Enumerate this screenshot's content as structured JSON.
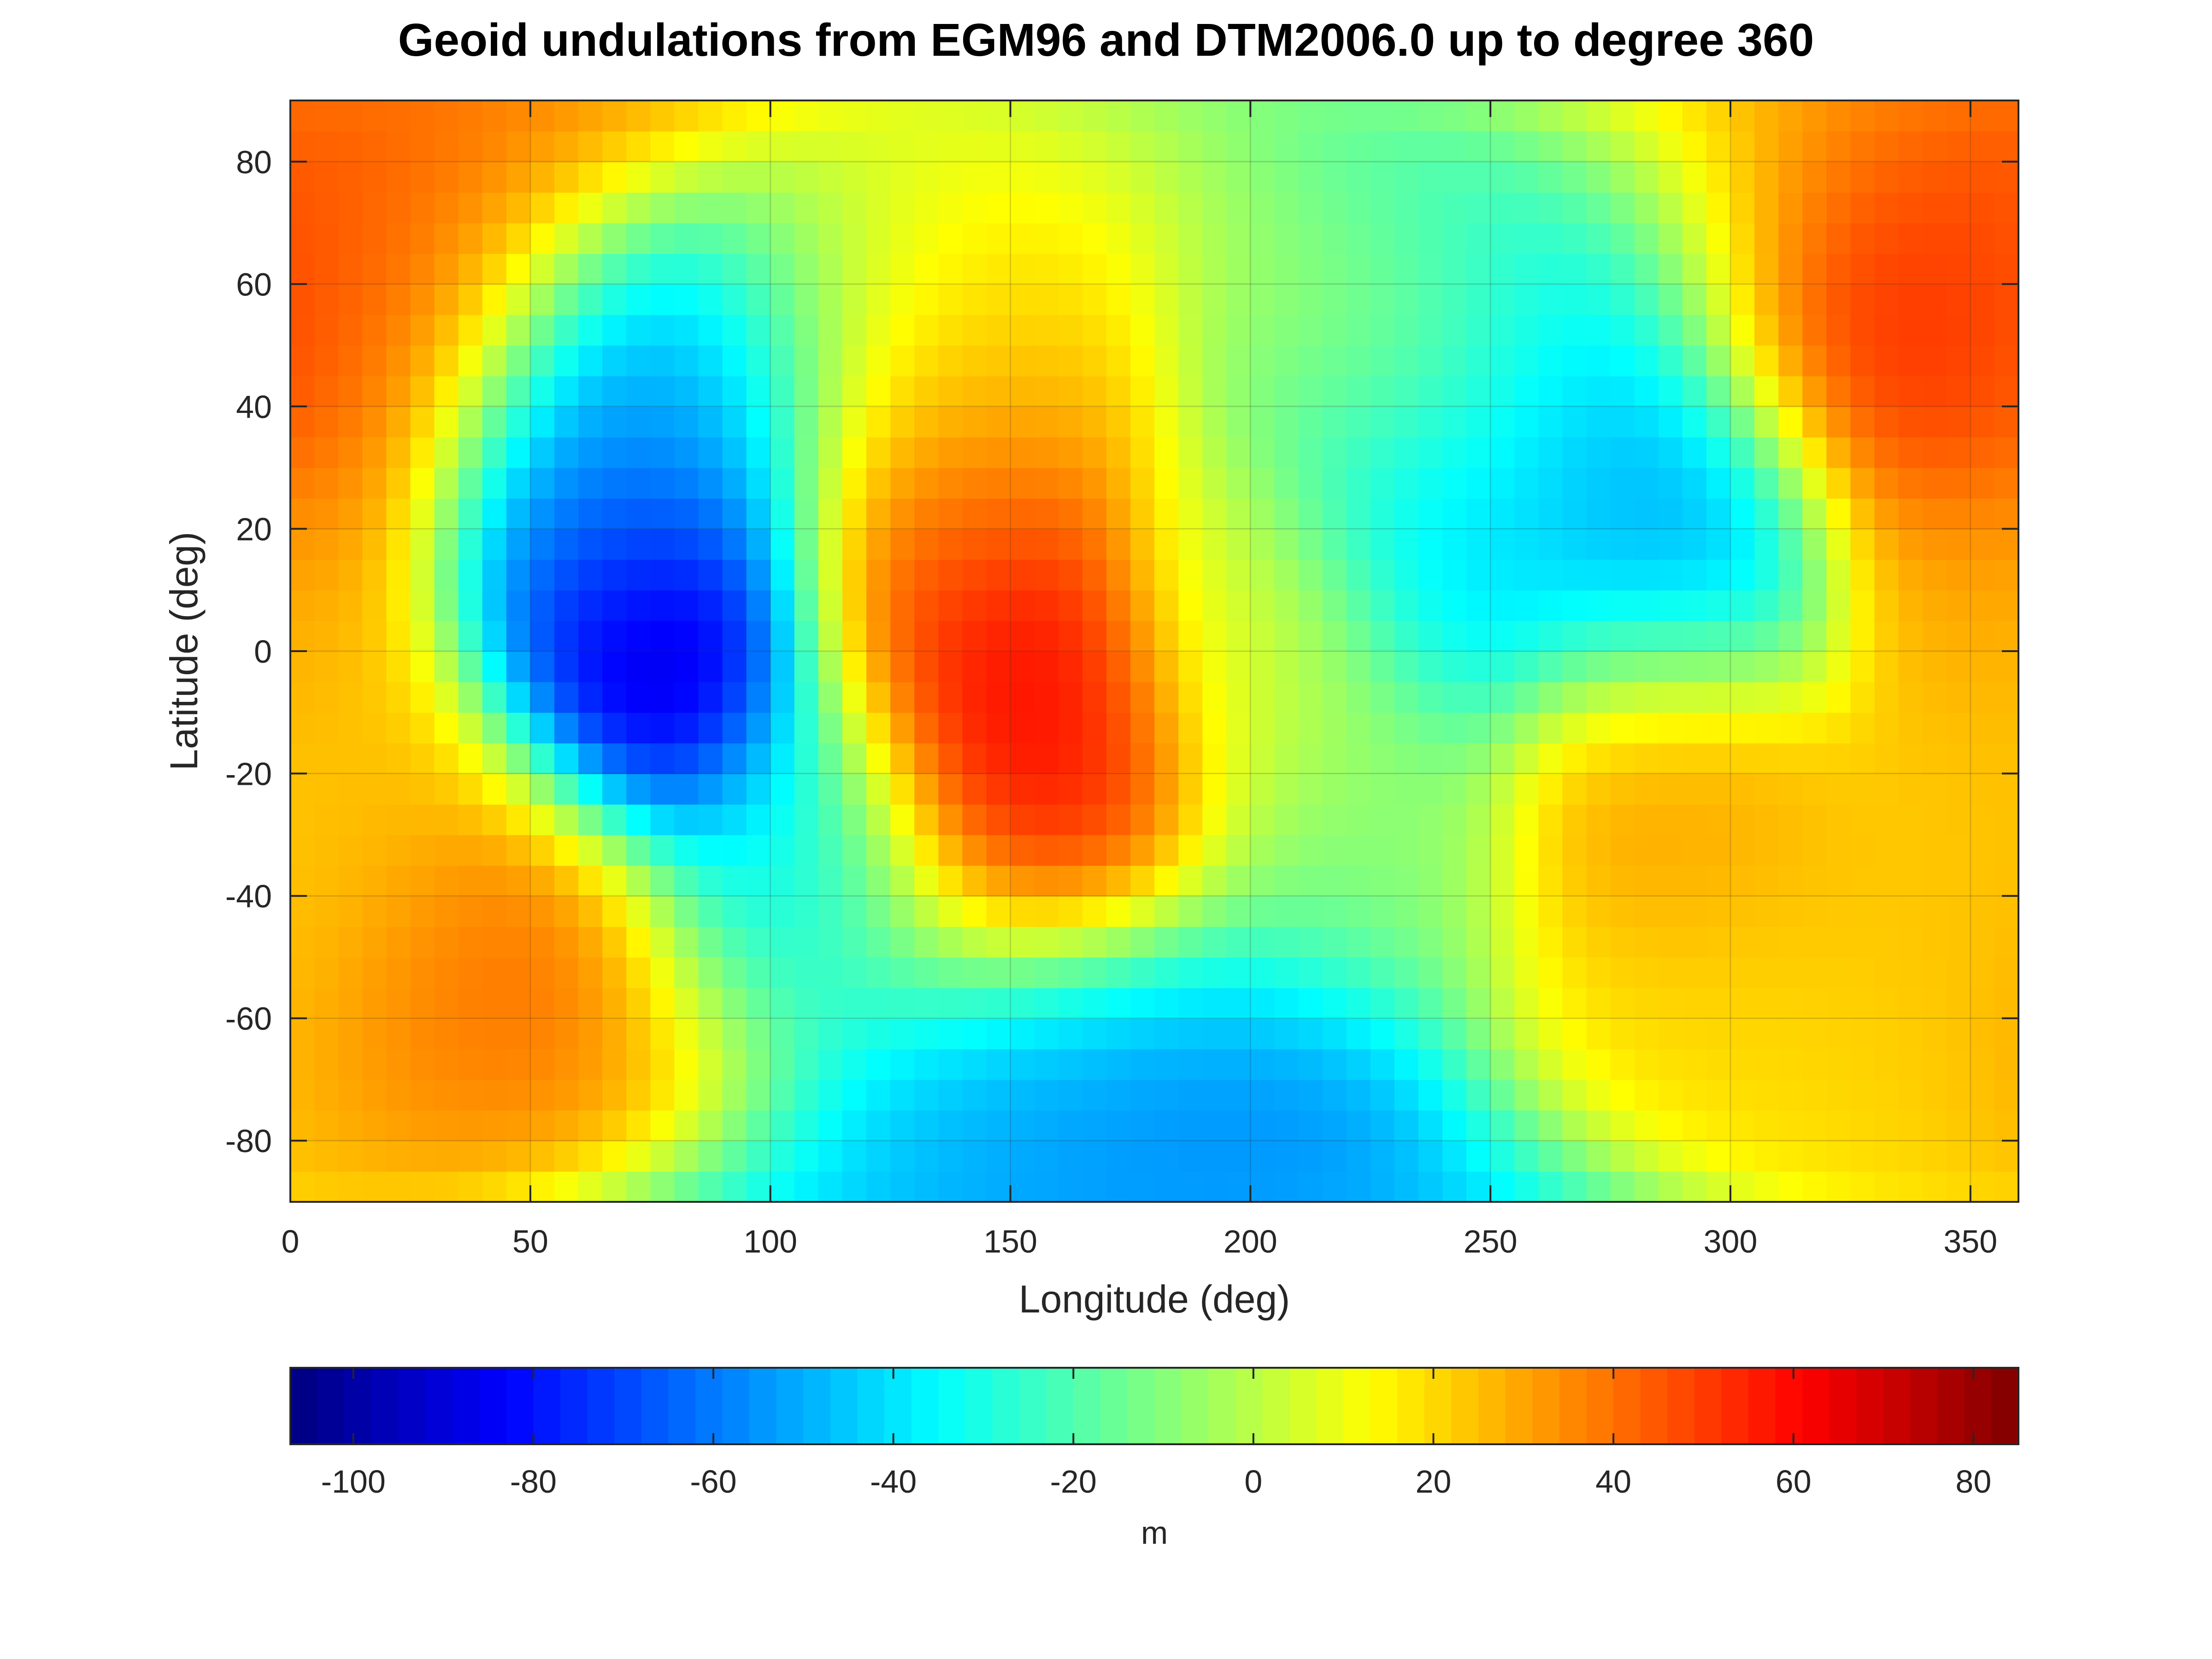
{
  "chart_data": {
    "type": "heatmap",
    "title": "Geoid undulations from EGM96 and DTM2006.0 up to degree 360",
    "xlabel": "Longitude (deg)",
    "ylabel": "Latitude (deg)",
    "xlim": [
      0,
      360
    ],
    "ylim": [
      -90,
      90
    ],
    "xticks": [
      0,
      50,
      100,
      150,
      200,
      250,
      300,
      350
    ],
    "yticks": [
      -80,
      -60,
      -40,
      -20,
      0,
      20,
      40,
      60,
      80
    ],
    "grid": true,
    "colormap": "jet",
    "colorbar": {
      "label": "m",
      "placement": "bottom",
      "range": [
        -107,
        85
      ],
      "ticks": [
        -100,
        -80,
        -60,
        -40,
        -20,
        0,
        20,
        40,
        60,
        80
      ]
    },
    "features": [
      {
        "lon": 75,
        "lat": 3,
        "value": -106
      },
      {
        "lon": 85,
        "lat": 40,
        "value": -50
      },
      {
        "lon": 60,
        "lat": 25,
        "value": -55
      },
      {
        "lon": 150,
        "lat": -10,
        "value": 70
      },
      {
        "lon": 160,
        "lat": -25,
        "value": 55
      },
      {
        "lon": 135,
        "lat": 20,
        "value": 45
      },
      {
        "lon": 135,
        "lat": 50,
        "value": 20
      },
      {
        "lon": 335,
        "lat": 50,
        "value": 60
      },
      {
        "lon": 330,
        "lat": 68,
        "value": 55
      },
      {
        "lon": 10,
        "lat": 70,
        "value": 40
      },
      {
        "lon": 15,
        "lat": 45,
        "value": 45
      },
      {
        "lon": 45,
        "lat": -50,
        "value": 45
      },
      {
        "lon": 15,
        "lat": -25,
        "value": 25
      },
      {
        "lon": 195,
        "lat": -73,
        "value": -65
      },
      {
        "lon": 160,
        "lat": -72,
        "value": -50
      },
      {
        "lon": 240,
        "lat": 22,
        "value": -45
      },
      {
        "lon": 270,
        "lat": 60,
        "value": -45
      },
      {
        "lon": 290,
        "lat": 20,
        "value": -55
      },
      {
        "lon": 290,
        "lat": -25,
        "value": 35
      },
      {
        "lon": 300,
        "lat": -55,
        "value": 20
      },
      {
        "lon": 350,
        "lat": -45,
        "value": 25
      },
      {
        "lon": 355,
        "lat": 10,
        "value": 30
      },
      {
        "lon": 110,
        "lat": -35,
        "value": -35
      },
      {
        "lon": 200,
        "lat": 0,
        "value": 5
      },
      {
        "lon": 220,
        "lat": -35,
        "value": -10
      },
      {
        "lon": 230,
        "lat": 55,
        "value": -5
      }
    ]
  }
}
